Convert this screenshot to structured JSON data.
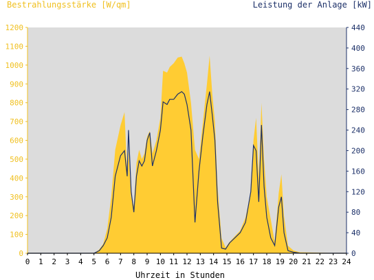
{
  "chart_data": {
    "type": "area",
    "left_axis_title": "Bestrahlungsstärke [W/qm]",
    "right_axis_title": "Leistung der Anlage [kW]",
    "xlabel": "Uhrzeit in Stunden",
    "x_ticks": [
      "0",
      "1",
      "2",
      "3",
      "4",
      "5",
      "6",
      "7",
      "8",
      "9",
      "10",
      "11",
      "12",
      "13",
      "14",
      "15",
      "16",
      "17",
      "18",
      "19",
      "20",
      "21",
      "22",
      "23",
      "24"
    ],
    "left_ticks": [
      "0",
      "100",
      "200",
      "300",
      "400",
      "500",
      "600",
      "700",
      "800",
      "900",
      "1000",
      "1100",
      "1200"
    ],
    "right_ticks": [
      "0",
      "40",
      "80",
      "120",
      "160",
      "200",
      "240",
      "280",
      "320",
      "360",
      "400",
      "440"
    ],
    "ylim_left": [
      0,
      1200
    ],
    "ylim_right": [
      0,
      440
    ],
    "xlim": [
      0,
      24
    ],
    "grid": false,
    "colors": {
      "irradiance": "#ffcc33",
      "power": "#1c3068",
      "background": "#dcdcdc",
      "left_axis": "#f0c020",
      "right_axis": "#1c3068"
    },
    "series": [
      {
        "name": "Bestrahlungsstärke [W/qm]",
        "axis": "left",
        "x": [
          0,
          5.0,
          5.4,
          5.7,
          6.0,
          6.3,
          6.6,
          7.0,
          7.3,
          7.5,
          7.6,
          7.8,
          8.0,
          8.2,
          8.4,
          8.6,
          8.8,
          9.0,
          9.2,
          9.4,
          9.7,
          10.0,
          10.2,
          10.5,
          10.7,
          11.0,
          11.3,
          11.6,
          11.8,
          12.0,
          12.3,
          12.6,
          12.9,
          13.2,
          13.5,
          13.7,
          13.9,
          14.1,
          14.3,
          14.6,
          14.9,
          15.2,
          15.6,
          16.0,
          16.4,
          16.8,
          17.0,
          17.2,
          17.4,
          17.6,
          17.8,
          18.0,
          18.3,
          18.6,
          18.9,
          19.1,
          19.3,
          19.6,
          20.0,
          20.5,
          24
        ],
        "y": [
          0,
          0,
          20,
          50,
          130,
          300,
          550,
          680,
          750,
          420,
          550,
          300,
          250,
          480,
          550,
          500,
          530,
          620,
          650,
          530,
          600,
          720,
          970,
          960,
          990,
          1010,
          1040,
          1045,
          1010,
          960,
          800,
          550,
          500,
          700,
          900,
          1050,
          850,
          700,
          350,
          80,
          30,
          60,
          90,
          120,
          190,
          320,
          600,
          720,
          400,
          800,
          500,
          300,
          180,
          60,
          320,
          420,
          200,
          40,
          15,
          5,
          0
        ]
      },
      {
        "name": "Leistung der Anlage [kW]",
        "axis": "right",
        "x": [
          0,
          5.0,
          5.4,
          5.7,
          6.0,
          6.3,
          6.6,
          7.0,
          7.3,
          7.5,
          7.6,
          7.8,
          8.0,
          8.2,
          8.4,
          8.6,
          8.8,
          9.0,
          9.2,
          9.4,
          9.7,
          10.0,
          10.2,
          10.5,
          10.7,
          11.0,
          11.3,
          11.6,
          11.8,
          12.0,
          12.3,
          12.6,
          12.9,
          13.2,
          13.5,
          13.7,
          13.9,
          14.1,
          14.3,
          14.6,
          14.9,
          15.2,
          15.6,
          16.0,
          16.4,
          16.8,
          17.0,
          17.2,
          17.4,
          17.6,
          17.8,
          18.0,
          18.3,
          18.6,
          18.9,
          19.1,
          19.3,
          19.6,
          20.0,
          20.5,
          24
        ],
        "y": [
          0,
          0,
          5,
          15,
          30,
          70,
          150,
          190,
          200,
          150,
          240,
          120,
          80,
          150,
          180,
          170,
          180,
          220,
          235,
          170,
          200,
          240,
          295,
          290,
          300,
          300,
          310,
          315,
          310,
          290,
          240,
          60,
          160,
          230,
          290,
          315,
          270,
          220,
          100,
          10,
          8,
          20,
          30,
          40,
          60,
          120,
          210,
          200,
          100,
          250,
          130,
          70,
          30,
          15,
          90,
          110,
          40,
          5,
          2,
          0,
          0
        ]
      }
    ]
  }
}
